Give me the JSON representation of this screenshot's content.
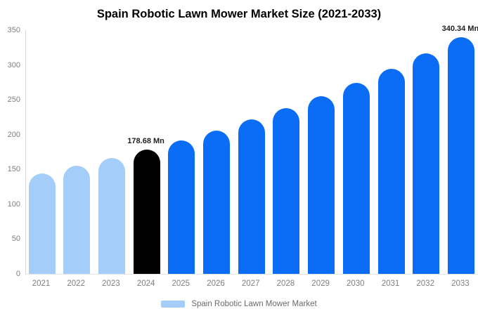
{
  "chart_data": {
    "type": "bar",
    "title": "Spain Robotic Lawn Mower Market Size (2021-2033)",
    "categories": [
      "2021",
      "2022",
      "2023",
      "2024",
      "2025",
      "2026",
      "2027",
      "2028",
      "2029",
      "2030",
      "2031",
      "2032",
      "2033"
    ],
    "values": [
      144.2,
      154.9,
      166.4,
      178.68,
      191.9,
      206.2,
      221.5,
      237.9,
      255.6,
      274.5,
      294.9,
      316.8,
      340.34
    ],
    "bar_colors": [
      "#a5cdf9",
      "#a5cdf9",
      "#a5cdf9",
      "#000000",
      "#0b6df6",
      "#0b6df6",
      "#0b6df6",
      "#0b6df6",
      "#0b6df6",
      "#0b6df6",
      "#0b6df6",
      "#0b6df6",
      "#0b6df6"
    ],
    "annotations": [
      {
        "index": 3,
        "text": "178.68 Mn"
      },
      {
        "index": 12,
        "text": "340.34 Mn"
      }
    ],
    "y_ticks": [
      0,
      50,
      100,
      150,
      200,
      250,
      300,
      350
    ],
    "ylim": [
      0,
      350
    ],
    "xlabel": "",
    "ylabel": "",
    "grid": false,
    "legend_position": "bottom",
    "legend": [
      {
        "label": "Spain Robotic Lawn Mower Market",
        "color": "#a5cdf9"
      }
    ],
    "palette": {
      "light_blue": "#a5cdf9",
      "blue": "#0b6df6",
      "black": "#000000",
      "axis_line": "#d8d8d8",
      "tick_text": "#7f7f7f",
      "legend_text": "#6b6b6b",
      "title_text": "#000000"
    }
  }
}
